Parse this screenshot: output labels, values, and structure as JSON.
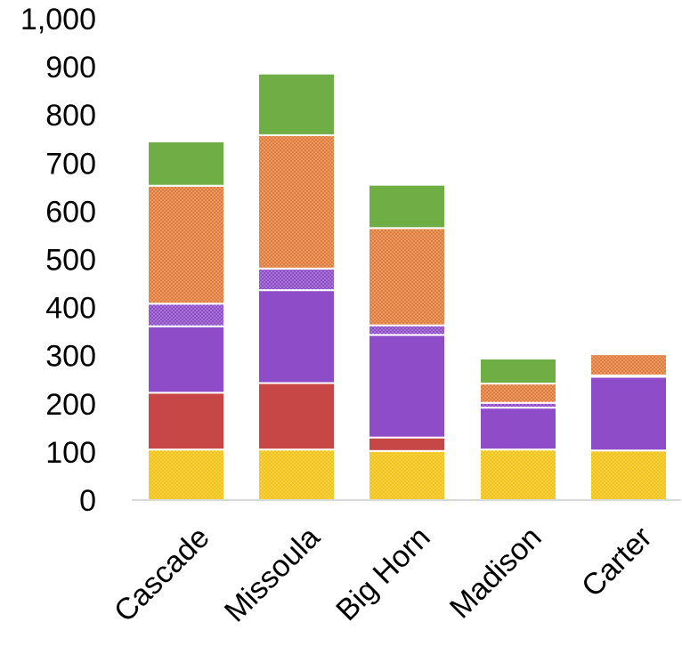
{
  "chart_data": {
    "type": "bar",
    "stacked": true,
    "title": "",
    "xlabel": "",
    "ylabel": "",
    "ylim": [
      0,
      1000
    ],
    "yticks": [
      0,
      100,
      200,
      300,
      400,
      500,
      600,
      700,
      800,
      900,
      1000
    ],
    "ytick_labels": [
      "0",
      "100",
      "200",
      "300",
      "400",
      "500",
      "600",
      "700",
      "800",
      "900",
      "1,000"
    ],
    "grid": false,
    "legend": "none",
    "categories": [
      "Cascade",
      "Missoula",
      "Big Horn",
      "Madison",
      "Carter"
    ],
    "series": [
      {
        "color": "#f2c312",
        "pattern": "dots",
        "values": [
          105,
          105,
          102,
          105,
          103
        ]
      },
      {
        "color": "#c74646",
        "pattern": "solid",
        "values": [
          118,
          138,
          28,
          0,
          0
        ]
      },
      {
        "color": "#8e4cc9",
        "pattern": "solid",
        "values": [
          138,
          193,
          213,
          87,
          153
        ]
      },
      {
        "color": "#8e4cc9",
        "pattern": "dots",
        "values": [
          47,
          45,
          20,
          10,
          3
        ]
      },
      {
        "color": "#e07b39",
        "pattern": "dots",
        "values": [
          245,
          277,
          202,
          40,
          44
        ]
      },
      {
        "color": "#6fae45",
        "pattern": "solid",
        "values": [
          92,
          128,
          90,
          52,
          0
        ]
      }
    ]
  }
}
